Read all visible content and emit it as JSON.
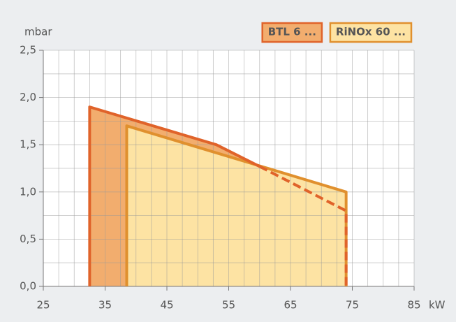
{
  "chart_data": {
    "type": "area",
    "y_label": "mbar",
    "x_label": "kW",
    "xlim": [
      25,
      85
    ],
    "xticks": [
      25,
      35,
      45,
      55,
      65,
      75,
      85
    ],
    "x_minor_step": 2.5,
    "ylim": [
      0,
      2.5
    ],
    "yticks": [
      {
        "value": 0,
        "label": "0,0"
      },
      {
        "value": 0.5,
        "label": "0,5"
      },
      {
        "value": 1,
        "label": "1,0"
      },
      {
        "value": 1.5,
        "label": "1,5"
      },
      {
        "value": 2,
        "label": "2,0"
      },
      {
        "value": 2.5,
        "label": "2,5"
      }
    ],
    "y_minor_step": 0.25,
    "grid": true,
    "legend": "top-right",
    "series": [
      {
        "name": "BTL 6 ...",
        "color": "#e0632a",
        "fill": "#f2ad6e",
        "x": [
          32.5,
          32.5,
          53,
          60,
          74,
          74
        ],
        "values": [
          0,
          1.9,
          1.5,
          1.27,
          0.8,
          0
        ],
        "dash_from_index": 3
      },
      {
        "name": "RiNOx 60 ...",
        "color": "#e0902e",
        "fill": "#fde3a3",
        "x": [
          38.5,
          38.5,
          74,
          74
        ],
        "values": [
          0,
          1.7,
          1,
          0
        ]
      }
    ]
  }
}
